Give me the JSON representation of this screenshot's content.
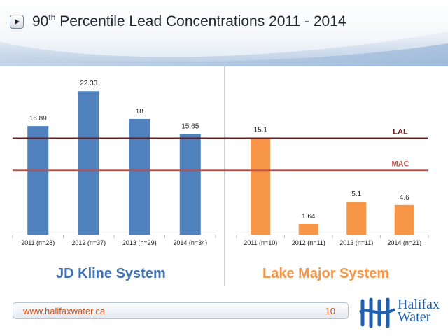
{
  "title": {
    "prefix": "90",
    "superscript": "th",
    "rest": " Percentile Lead Concentrations 2011 - 2014"
  },
  "colors": {
    "blue": "#4f81bd",
    "orange": "#f79646",
    "lal_line": "#6b1c1c",
    "mac_line": "#c0504d",
    "header": "#9db7d6"
  },
  "chart_data": [
    {
      "type": "bar",
      "system_label": "JD Kline System",
      "categories": [
        "2011 (n=28)",
        "2012 (n=37)",
        "2013 (n=29)",
        "2014 (n=34)"
      ],
      "values": [
        16.89,
        22.33,
        18,
        15.65
      ],
      "value_labels": [
        "16.89",
        "22.33",
        "18",
        "15.65"
      ],
      "color": "#4f81bd",
      "ylim": [
        0,
        26
      ]
    },
    {
      "type": "bar",
      "system_label": "Lake Major System",
      "categories": [
        "2011 (n=10)",
        "2012 (n=11)",
        "2013 (n=11)",
        "2014 (n=21)"
      ],
      "values": [
        15.1,
        1.64,
        5.1,
        4.6
      ],
      "value_labels": [
        "15.1",
        "1.64",
        "5.1",
        "4.6"
      ],
      "color": "#f79646",
      "ylim": [
        0,
        26
      ]
    }
  ],
  "reference_lines": [
    {
      "label": "LAL",
      "value": 15
    },
    {
      "label": "MAC",
      "value": 10
    }
  ],
  "footer": {
    "url": "www.halifaxwater.ca",
    "page": "10"
  },
  "logo": {
    "line1": "Halifax",
    "line2": "Water"
  }
}
